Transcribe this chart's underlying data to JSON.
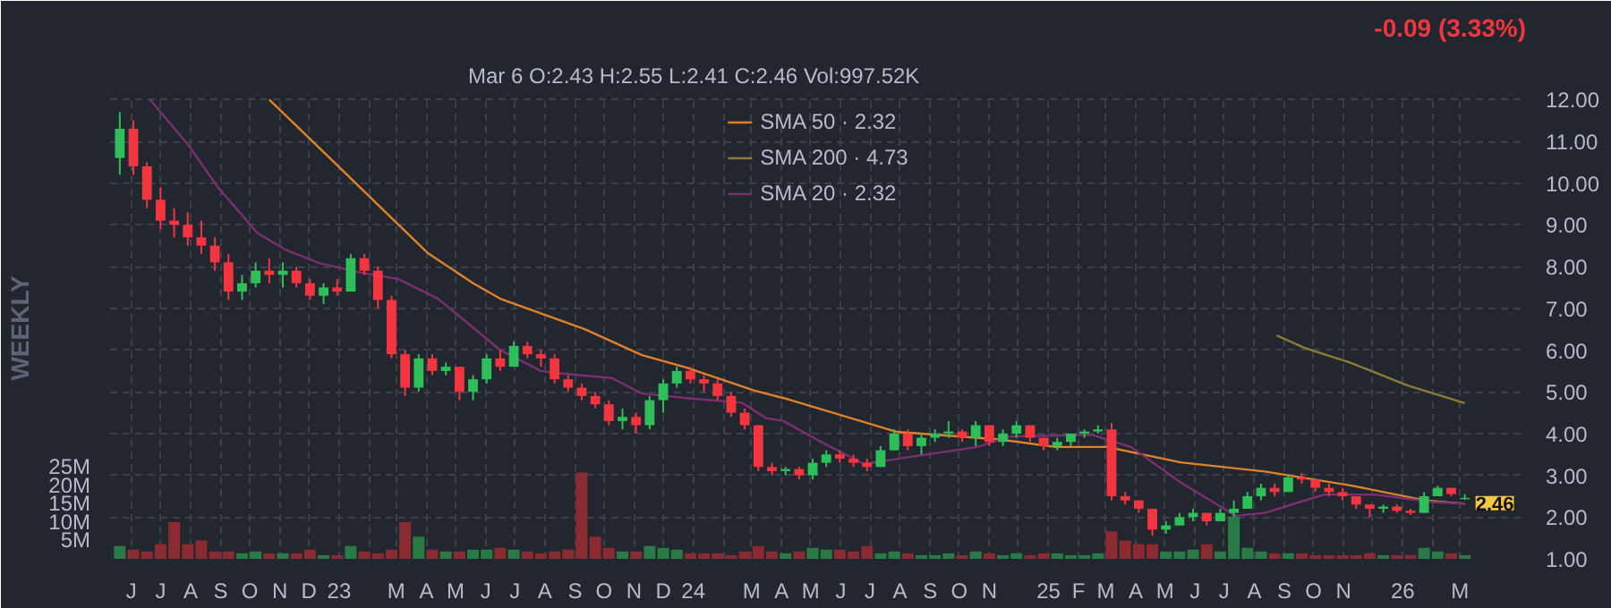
{
  "chart_data": {
    "type": "candlestick",
    "subtitle": "Mar 6   O:2.43  H:2.55  L:2.41  C:2.46     Vol:997.52K",
    "y2label": "WEEKLY",
    "annotations": [
      "-0.09 (3.33%)",
      {
        "text": "2.46",
        "x": "2026-03-06",
        "y": 2.46
      }
    ],
    "x": [
      "2022-05-20",
      "2022-06-03",
      "2022-06-17",
      "2022-07-01",
      "2022-07-15",
      "2022-07-29",
      "2022-08-12",
      "2022-08-26",
      "2022-09-09",
      "2022-09-23",
      "2022-10-07",
      "2022-10-21",
      "2022-11-04",
      "2022-11-18",
      "2022-12-02",
      "2022-12-16",
      "2022-12-30",
      "2023-01-13",
      "2023-01-27",
      "2023-02-10",
      "2023-02-24",
      "2023-03-10",
      "2023-03-24",
      "2023-04-07",
      "2023-04-21",
      "2023-05-05",
      "2023-05-19",
      "2023-06-02",
      "2023-06-16",
      "2023-06-30",
      "2023-07-14",
      "2023-07-28",
      "2023-08-11",
      "2023-08-25",
      "2023-09-08",
      "2023-09-22",
      "2023-10-06",
      "2023-10-20",
      "2023-11-03",
      "2023-11-17",
      "2023-12-01",
      "2023-12-15",
      "2023-12-29",
      "2024-01-12",
      "2024-01-26",
      "2024-02-09",
      "2024-02-23",
      "2024-03-08",
      "2024-03-22",
      "2024-04-05",
      "2024-04-19",
      "2024-05-03",
      "2024-05-17",
      "2024-05-31",
      "2024-06-14",
      "2024-06-28",
      "2024-07-12",
      "2024-07-26",
      "2024-08-09",
      "2024-08-23",
      "2024-09-06",
      "2024-09-20",
      "2024-10-04",
      "2024-10-18",
      "2024-11-01",
      "2024-11-15",
      "2024-11-29",
      "2024-12-13",
      "2024-12-27",
      "2025-01-10",
      "2025-01-24",
      "2025-02-07",
      "2025-02-21",
      "2025-03-07",
      "2025-03-21",
      "2025-04-04",
      "2025-04-18",
      "2025-05-02",
      "2025-05-16",
      "2025-05-30",
      "2025-06-13",
      "2025-06-27",
      "2025-07-11",
      "2025-07-25",
      "2025-08-08",
      "2025-08-22",
      "2025-09-05",
      "2025-09-19",
      "2025-10-03",
      "2025-10-17",
      "2025-10-31",
      "2025-11-14",
      "2025-11-28",
      "2025-12-12",
      "2025-12-26",
      "2026-01-09",
      "2026-01-23",
      "2026-02-06",
      "2026-02-20",
      "2026-03-06"
    ],
    "ohlc": [
      [
        10.6,
        11.7,
        10.2,
        11.3
      ],
      [
        11.3,
        11.5,
        10.2,
        10.4
      ],
      [
        10.4,
        10.5,
        9.4,
        9.6
      ],
      [
        9.6,
        9.9,
        8.9,
        9.1
      ],
      [
        9.1,
        9.4,
        8.7,
        9.0
      ],
      [
        9.0,
        9.3,
        8.5,
        8.7
      ],
      [
        8.7,
        9.1,
        8.3,
        8.5
      ],
      [
        8.5,
        8.7,
        7.9,
        8.1
      ],
      [
        8.1,
        8.3,
        7.2,
        7.4
      ],
      [
        7.4,
        7.8,
        7.2,
        7.6
      ],
      [
        7.6,
        8.1,
        7.5,
        7.9
      ],
      [
        7.9,
        8.2,
        7.6,
        7.8
      ],
      [
        7.8,
        8.1,
        7.5,
        7.9
      ],
      [
        7.9,
        8.0,
        7.5,
        7.6
      ],
      [
        7.6,
        7.7,
        7.2,
        7.3
      ],
      [
        7.3,
        7.6,
        7.1,
        7.5
      ],
      [
        7.5,
        7.7,
        7.3,
        7.4
      ],
      [
        7.4,
        8.3,
        7.4,
        8.2
      ],
      [
        8.2,
        8.3,
        7.8,
        7.9
      ],
      [
        7.9,
        8.0,
        7.0,
        7.2
      ],
      [
        7.2,
        7.3,
        5.8,
        5.9
      ],
      [
        5.9,
        6.0,
        4.9,
        5.1
      ],
      [
        5.1,
        5.9,
        5.0,
        5.8
      ],
      [
        5.8,
        5.9,
        5.4,
        5.5
      ],
      [
        5.5,
        5.7,
        5.4,
        5.6
      ],
      [
        5.6,
        5.6,
        4.8,
        5.0
      ],
      [
        5.0,
        5.4,
        4.8,
        5.3
      ],
      [
        5.3,
        5.9,
        5.2,
        5.8
      ],
      [
        5.8,
        6.0,
        5.5,
        5.6
      ],
      [
        5.6,
        6.2,
        5.6,
        6.1
      ],
      [
        6.1,
        6.2,
        5.8,
        5.9
      ],
      [
        5.9,
        6.0,
        5.6,
        5.8
      ],
      [
        5.8,
        5.9,
        5.2,
        5.3
      ],
      [
        5.3,
        5.4,
        5.0,
        5.1
      ],
      [
        5.1,
        5.2,
        4.8,
        4.9
      ],
      [
        4.9,
        5.0,
        4.6,
        4.7
      ],
      [
        4.7,
        4.8,
        4.2,
        4.3
      ],
      [
        4.3,
        4.6,
        4.1,
        4.4
      ],
      [
        4.4,
        4.5,
        4.0,
        4.2
      ],
      [
        4.2,
        4.9,
        4.1,
        4.8
      ],
      [
        4.8,
        5.3,
        4.5,
        5.2
      ],
      [
        5.2,
        5.6,
        5.1,
        5.5
      ],
      [
        5.5,
        5.6,
        5.2,
        5.3
      ],
      [
        5.3,
        5.4,
        5.0,
        5.2
      ],
      [
        5.2,
        5.3,
        4.8,
        4.9
      ],
      [
        4.9,
        5.0,
        4.4,
        4.5
      ],
      [
        4.5,
        4.6,
        4.1,
        4.2
      ],
      [
        4.2,
        4.2,
        3.1,
        3.2
      ],
      [
        3.2,
        3.3,
        3.0,
        3.1
      ],
      [
        3.1,
        3.2,
        3.0,
        3.15
      ],
      [
        3.15,
        3.2,
        2.9,
        3.0
      ],
      [
        3.0,
        3.4,
        2.9,
        3.3
      ],
      [
        3.3,
        3.6,
        3.2,
        3.5
      ],
      [
        3.5,
        3.6,
        3.3,
        3.4
      ],
      [
        3.4,
        3.5,
        3.2,
        3.3
      ],
      [
        3.3,
        3.4,
        3.1,
        3.2
      ],
      [
        3.2,
        3.7,
        3.2,
        3.6
      ],
      [
        3.6,
        4.1,
        3.6,
        4.0
      ],
      [
        4.0,
        4.1,
        3.6,
        3.7
      ],
      [
        3.7,
        4.0,
        3.5,
        3.9
      ],
      [
        3.9,
        4.1,
        3.8,
        4.0
      ],
      [
        4.0,
        4.3,
        3.9,
        4.05
      ],
      [
        4.05,
        4.1,
        3.8,
        3.9
      ],
      [
        3.9,
        4.3,
        3.7,
        4.2
      ],
      [
        4.2,
        4.2,
        3.7,
        3.8
      ],
      [
        3.8,
        4.1,
        3.7,
        4.0
      ],
      [
        4.0,
        4.3,
        3.9,
        4.2
      ],
      [
        4.2,
        4.2,
        3.8,
        3.9
      ],
      [
        3.9,
        3.9,
        3.6,
        3.7
      ],
      [
        3.7,
        3.9,
        3.6,
        3.8
      ],
      [
        3.8,
        4.0,
        3.7,
        4.0
      ],
      [
        4.0,
        4.1,
        3.9,
        4.05
      ],
      [
        4.05,
        4.2,
        4.0,
        4.1
      ],
      [
        4.1,
        4.25,
        2.4,
        2.5
      ],
      [
        2.5,
        2.6,
        2.3,
        2.4
      ],
      [
        2.4,
        2.4,
        2.1,
        2.2
      ],
      [
        2.2,
        2.2,
        1.55,
        1.7
      ],
      [
        1.7,
        1.9,
        1.6,
        1.8
      ],
      [
        1.8,
        2.1,
        1.8,
        2.0
      ],
      [
        2.0,
        2.2,
        1.9,
        2.1
      ],
      [
        2.1,
        2.1,
        1.8,
        1.9
      ],
      [
        1.9,
        2.2,
        1.9,
        2.1
      ],
      [
        2.1,
        2.4,
        2.0,
        2.2
      ],
      [
        2.2,
        2.6,
        2.2,
        2.5
      ],
      [
        2.5,
        2.8,
        2.4,
        2.7
      ],
      [
        2.7,
        2.8,
        2.5,
        2.6
      ],
      [
        2.6,
        3.0,
        2.6,
        2.95
      ],
      [
        2.95,
        3.05,
        2.8,
        2.9
      ],
      [
        2.9,
        2.9,
        2.6,
        2.7
      ],
      [
        2.7,
        2.8,
        2.5,
        2.6
      ],
      [
        2.6,
        2.7,
        2.4,
        2.5
      ],
      [
        2.5,
        2.5,
        2.2,
        2.3
      ],
      [
        2.3,
        2.3,
        2.0,
        2.2
      ],
      [
        2.2,
        2.3,
        2.1,
        2.25
      ],
      [
        2.25,
        2.3,
        2.1,
        2.15
      ],
      [
        2.15,
        2.2,
        2.05,
        2.1
      ],
      [
        2.1,
        2.6,
        2.1,
        2.5
      ],
      [
        2.5,
        2.75,
        2.5,
        2.7
      ],
      [
        2.7,
        2.7,
        2.5,
        2.55
      ],
      [
        2.43,
        2.55,
        2.41,
        2.46
      ]
    ],
    "colors": [
      "#2fbf5a",
      "#f2353f",
      "#f2353f",
      "#f2353f",
      "#f2353f",
      "#f2353f",
      "#f2353f",
      "#f2353f",
      "#f2353f",
      "#2fbf5a",
      "#2fbf5a",
      "#f2353f",
      "#2fbf5a",
      "#f2353f",
      "#f2353f",
      "#2fbf5a",
      "#f2353f",
      "#2fbf5a",
      "#f2353f",
      "#f2353f",
      "#f2353f",
      "#f2353f",
      "#2fbf5a",
      "#f2353f",
      "#2fbf5a",
      "#f2353f",
      "#2fbf5a",
      "#2fbf5a",
      "#f2353f",
      "#2fbf5a",
      "#f2353f",
      "#f2353f",
      "#f2353f",
      "#f2353f",
      "#f2353f",
      "#f2353f",
      "#f2353f",
      "#2fbf5a",
      "#f2353f",
      "#2fbf5a",
      "#2fbf5a",
      "#2fbf5a",
      "#f2353f",
      "#f2353f",
      "#f2353f",
      "#f2353f",
      "#f2353f",
      "#f2353f",
      "#f2353f",
      "#2fbf5a",
      "#f2353f",
      "#2fbf5a",
      "#2fbf5a",
      "#f2353f",
      "#f2353f",
      "#f2353f",
      "#2fbf5a",
      "#2fbf5a",
      "#f2353f",
      "#2fbf5a",
      "#2fbf5a",
      "#2fbf5a",
      "#f2353f",
      "#2fbf5a",
      "#f2353f",
      "#2fbf5a",
      "#2fbf5a",
      "#f2353f",
      "#f2353f",
      "#2fbf5a",
      "#2fbf5a",
      "#2fbf5a",
      "#2fbf5a",
      "#f2353f",
      "#f2353f",
      "#f2353f",
      "#f2353f",
      "#2fbf5a",
      "#2fbf5a",
      "#2fbf5a",
      "#f2353f",
      "#2fbf5a",
      "#2fbf5a",
      "#2fbf5a",
      "#2fbf5a",
      "#f2353f",
      "#2fbf5a",
      "#f2353f",
      "#f2353f",
      "#f2353f",
      "#f2353f",
      "#f2353f",
      "#f2353f",
      "#2fbf5a",
      "#f2353f",
      "#f2353f",
      "#2fbf5a",
      "#2fbf5a",
      "#f2353f",
      "#2fbf5a"
    ],
    "series": [
      {
        "type": "bar",
        "axis": "y2",
        "values": [
          3.5,
          2.5,
          2.0,
          4.0,
          10.0,
          4.0,
          5.0,
          2.0,
          2.0,
          1.5,
          2.0,
          1.5,
          1.5,
          1.5,
          2.5,
          1.0,
          1.0,
          3.5,
          2.0,
          1.5,
          2.5,
          10.0,
          6.0,
          2.5,
          2.0,
          2.0,
          2.5,
          2.5,
          3.0,
          2.5,
          2.0,
          1.5,
          2.0,
          2.5,
          23.5,
          6.0,
          3.0,
          2.0,
          2.0,
          3.5,
          3.0,
          2.5,
          1.5,
          1.5,
          1.5,
          1.0,
          2.0,
          3.5,
          2.0,
          1.5,
          2.0,
          3.0,
          2.5,
          2.5,
          2.0,
          3.5,
          1.5,
          2.0,
          1.5,
          1.0,
          1.0,
          1.5,
          1.0,
          2.0,
          1.5,
          1.0,
          1.5,
          1.0,
          1.5,
          1.5,
          1.0,
          1.0,
          1.5,
          7.5,
          5.0,
          4.0,
          4.0,
          2.0,
          2.0,
          2.5,
          4.0,
          2.0,
          11.5,
          3.0,
          2.0,
          1.5,
          1.5,
          1.5,
          1.0,
          1.0,
          1.0,
          1.0,
          1.5,
          1.0,
          1.0,
          1.0,
          3.0,
          2.0,
          1.5,
          1.0
        ],
        "colors": [
          "#2a7a45",
          "#8b2a30",
          "#8b2a30",
          "#8b2a30",
          "#8b2a30",
          "#8b2a30",
          "#8b2a30",
          "#8b2a30",
          "#8b2a30",
          "#2a7a45",
          "#2a7a45",
          "#8b2a30",
          "#2a7a45",
          "#8b2a30",
          "#8b2a30",
          "#2a7a45",
          "#8b2a30",
          "#2a7a45",
          "#8b2a30",
          "#8b2a30",
          "#8b2a30",
          "#8b2a30",
          "#2a7a45",
          "#8b2a30",
          "#2a7a45",
          "#8b2a30",
          "#2a7a45",
          "#2a7a45",
          "#8b2a30",
          "#2a7a45",
          "#8b2a30",
          "#8b2a30",
          "#8b2a30",
          "#8b2a30",
          "#8b2a30",
          "#8b2a30",
          "#8b2a30",
          "#2a7a45",
          "#8b2a30",
          "#2a7a45",
          "#2a7a45",
          "#2a7a45",
          "#8b2a30",
          "#8b2a30",
          "#8b2a30",
          "#8b2a30",
          "#8b2a30",
          "#8b2a30",
          "#8b2a30",
          "#2a7a45",
          "#8b2a30",
          "#2a7a45",
          "#2a7a45",
          "#8b2a30",
          "#8b2a30",
          "#8b2a30",
          "#2a7a45",
          "#2a7a45",
          "#8b2a30",
          "#2a7a45",
          "#2a7a45",
          "#2a7a45",
          "#8b2a30",
          "#2a7a45",
          "#8b2a30",
          "#2a7a45",
          "#2a7a45",
          "#8b2a30",
          "#8b2a30",
          "#2a7a45",
          "#2a7a45",
          "#2a7a45",
          "#2a7a45",
          "#8b2a30",
          "#8b2a30",
          "#8b2a30",
          "#8b2a30",
          "#2a7a45",
          "#2a7a45",
          "#2a7a45",
          "#8b2a30",
          "#2a7a45",
          "#2a7a45",
          "#2a7a45",
          "#2a7a45",
          "#8b2a30",
          "#2a7a45",
          "#8b2a30",
          "#8b2a30",
          "#8b2a30",
          "#8b2a30",
          "#8b2a30",
          "#8b2a30",
          "#2a7a45",
          "#8b2a30",
          "#8b2a30",
          "#2a7a45",
          "#2a7a45",
          "#8b2a30",
          "#2a7a45"
        ]
      },
      {
        "type": "line",
        "name": "SMA 50 · 2.32",
        "color": "#e0822a",
        "x": [
          "2022-10-21",
          "2022-12-18",
          "2023-04-02",
          "2023-05-19",
          "2023-06-16",
          "2023-09-11",
          "2023-11-09",
          "2023-12-25",
          "2024-03-04",
          "2024-04-03",
          "2024-07-29",
          "2024-11-12",
          "2025-01-08",
          "2025-03-02",
          "2025-05-17",
          "2025-08-12",
          "2025-11-08",
          "2026-01-24",
          "2026-03-06"
        ],
        "values": [
          12.0,
          10.7,
          8.33,
          7.6,
          7.23,
          6.5,
          5.88,
          5.58,
          5.03,
          4.85,
          4.04,
          3.86,
          3.68,
          3.68,
          3.31,
          3.09,
          2.76,
          2.4,
          2.32
        ]
      },
      {
        "type": "line",
        "name": "SMA 200 · 4.73",
        "color": "#8c7b33",
        "x": [
          "2025-08-24",
          "2025-09-22",
          "2025-11-08",
          "2026-01-06",
          "2026-03-06"
        ],
        "values": [
          6.35,
          6.05,
          5.7,
          5.15,
          4.73
        ]
      },
      {
        "type": "line",
        "name": "SMA 20 · 2.32",
        "color": "#7b2f72",
        "x": [
          "2022-06-20",
          "2022-07-30",
          "2022-08-29",
          "2022-10-09",
          "2022-11-07",
          "2022-12-12",
          "2023-01-22",
          "2023-03-03",
          "2023-04-13",
          "2023-06-16",
          "2023-07-28",
          "2023-08-13",
          "2023-10-09",
          "2023-11-09",
          "2023-12-25",
          "2024-02-20",
          "2024-03-16",
          "2024-04-03",
          "2024-05-10",
          "2024-06-25",
          "2024-08-14",
          "2024-10-20",
          "2024-11-22",
          "2025-02-15",
          "2025-03-27",
          "2025-05-17",
          "2025-07-13",
          "2025-08-12",
          "2025-09-17",
          "2025-10-12",
          "2025-12-03",
          "2026-02-01",
          "2026-03-06"
        ],
        "values": [
          12.0,
          10.9,
          9.9,
          8.8,
          8.4,
          8.08,
          7.86,
          7.7,
          7.23,
          6.0,
          5.5,
          5.45,
          5.33,
          4.96,
          4.85,
          4.74,
          4.37,
          4.3,
          3.82,
          3.27,
          3.45,
          3.68,
          3.93,
          3.97,
          3.68,
          2.83,
          2.03,
          2.1,
          2.36,
          2.54,
          2.54,
          2.36,
          2.32
        ]
      }
    ],
    "xlim": [
      "2022-05-10",
      "2026-05-08"
    ],
    "xticks": [
      {
        "value": "2022-06",
        "label": "J"
      },
      {
        "value": "2022-07",
        "label": "J"
      },
      {
        "value": "2022-08",
        "label": "A"
      },
      {
        "value": "2022-09",
        "label": "S"
      },
      {
        "value": "2022-10",
        "label": "O"
      },
      {
        "value": "2022-11",
        "label": "N"
      },
      {
        "value": "2022-12",
        "label": "D"
      },
      {
        "value": "2023-01",
        "label": "23"
      },
      {
        "value": "2023-02",
        "label": null
      },
      {
        "value": "2023-03",
        "label": "M"
      },
      {
        "value": "2023-04",
        "label": "A"
      },
      {
        "value": "2023-05",
        "label": "M"
      },
      {
        "value": "2023-06",
        "label": "J"
      },
      {
        "value": "2023-07",
        "label": "J"
      },
      {
        "value": "2023-08",
        "label": "A"
      },
      {
        "value": "2023-09",
        "label": "S"
      },
      {
        "value": "2023-10",
        "label": "O"
      },
      {
        "value": "2023-11",
        "label": "N"
      },
      {
        "value": "2023-12",
        "label": "D"
      },
      {
        "value": "2024-01",
        "label": "24"
      },
      {
        "value": "2024-02",
        "label": null
      },
      {
        "value": "2024-03",
        "label": "M"
      },
      {
        "value": "2024-04",
        "label": "A"
      },
      {
        "value": "2024-05",
        "label": "M"
      },
      {
        "value": "2024-06",
        "label": "J"
      },
      {
        "value": "2024-07",
        "label": "J"
      },
      {
        "value": "2024-08",
        "label": "A"
      },
      {
        "value": "2024-09",
        "label": "S"
      },
      {
        "value": "2024-10",
        "label": "O"
      },
      {
        "value": "2024-11",
        "label": "N"
      },
      {
        "value": "2024-12",
        "label": null
      },
      {
        "value": "2025-01",
        "label": "25"
      },
      {
        "value": "2025-02",
        "label": "F"
      },
      {
        "value": "2025-03",
        "label": "M"
      },
      {
        "value": "2025-04",
        "label": "A"
      },
      {
        "value": "2025-05",
        "label": "M"
      },
      {
        "value": "2025-06",
        "label": "J"
      },
      {
        "value": "2025-07",
        "label": "J"
      },
      {
        "value": "2025-08",
        "label": "A"
      },
      {
        "value": "2025-09",
        "label": "S"
      },
      {
        "value": "2025-10",
        "label": "O"
      },
      {
        "value": "2025-11",
        "label": "N"
      },
      {
        "value": "2025-12",
        "label": null
      },
      {
        "value": "2026-01",
        "label": "26"
      },
      {
        "value": "2026-02",
        "label": null
      },
      {
        "value": "2026-03",
        "label": "M"
      }
    ],
    "ylim": [
      1,
      12.05
    ],
    "yticks": [
      {
        "value": 1,
        "label": "1.00"
      },
      {
        "value": 2,
        "label": "2.00"
      },
      {
        "value": 3,
        "label": "3.00"
      },
      {
        "value": 4,
        "label": "4.00"
      },
      {
        "value": 5,
        "label": "5.00"
      },
      {
        "value": 6,
        "label": "6.00"
      },
      {
        "value": 7,
        "label": "7.00"
      },
      {
        "value": 8,
        "label": "8.00"
      },
      {
        "value": 9,
        "label": "9.00"
      },
      {
        "value": 10,
        "label": "10.00"
      },
      {
        "value": 11,
        "label": "11.00"
      },
      {
        "value": 12,
        "label": "12.00"
      }
    ],
    "y2lim": [
      0,
      125.6
    ],
    "y2ticks": [
      {
        "value": 5,
        "label": "5M"
      },
      {
        "value": 10,
        "label": "10M"
      },
      {
        "value": 15,
        "label": "15M"
      },
      {
        "value": 20,
        "label": "20M"
      },
      {
        "value": 25,
        "label": "25M"
      }
    ],
    "grid": true,
    "legend": "top"
  }
}
